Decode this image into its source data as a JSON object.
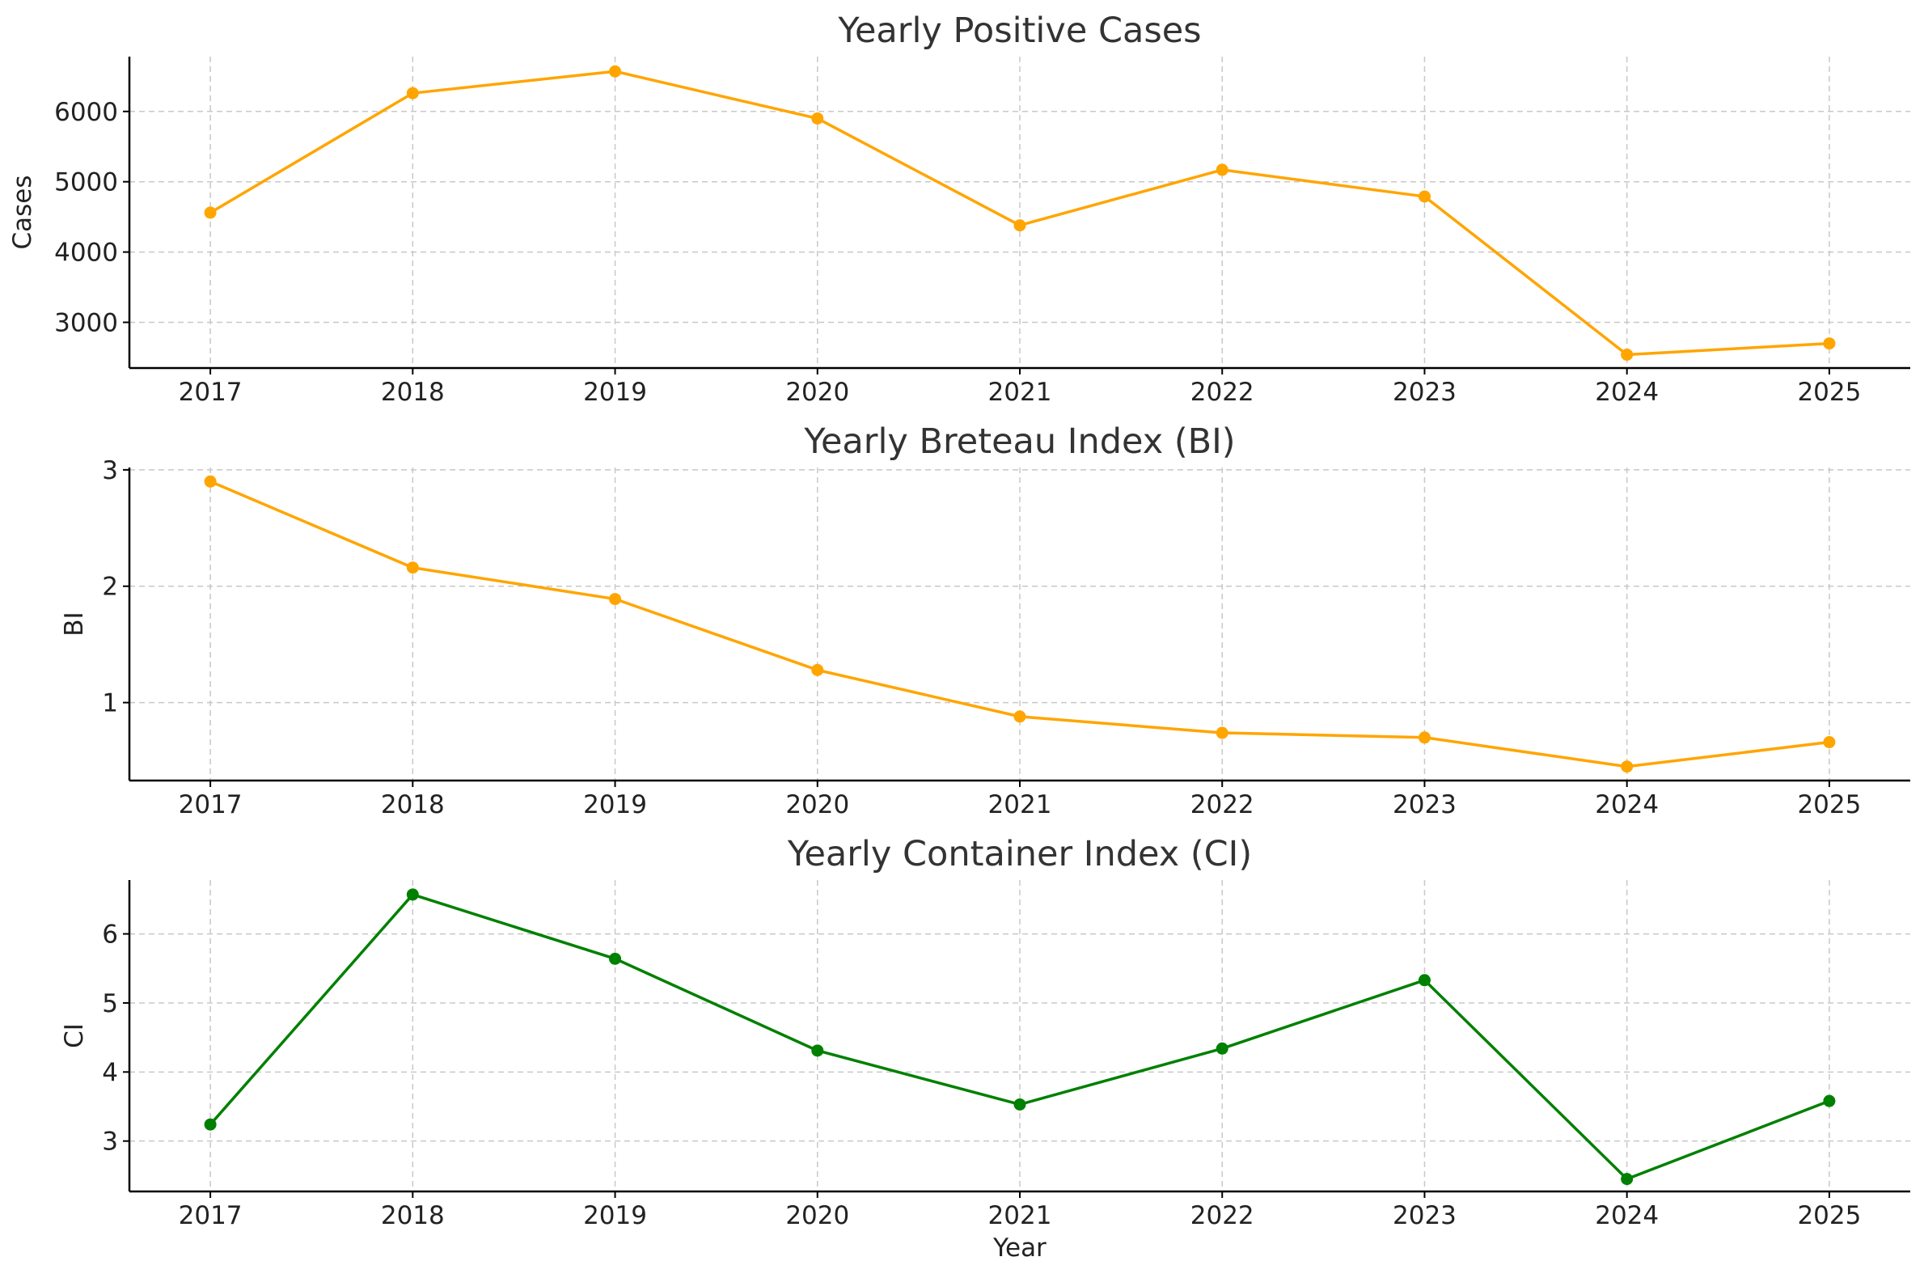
{
  "chart_data": [
    {
      "type": "line",
      "title": "Yearly Positive Cases",
      "xlabel": "",
      "ylabel": "Cases",
      "x": [
        2017,
        2018,
        2019,
        2020,
        2021,
        2022,
        2023,
        2024,
        2025
      ],
      "x_tick_labels": [
        "2017",
        "2018",
        "2019",
        "2020",
        "2021",
        "2022",
        "2023",
        "2024",
        "2025"
      ],
      "series": [
        {
          "values": [
            4560,
            6260,
            6570,
            5900,
            4380,
            5170,
            4790,
            2540,
            2700
          ],
          "color": "#FFA500"
        }
      ],
      "yticks": [
        3000,
        4000,
        5000,
        6000
      ],
      "ytick_labels": [
        "3000",
        "4000",
        "5000",
        "6000"
      ],
      "ylim": [
        2350,
        6780
      ],
      "xlim": [
        2016.6,
        2025.4
      ],
      "grid": true
    },
    {
      "type": "line",
      "title": "Yearly Breteau Index (BI)",
      "xlabel": "",
      "ylabel": "BI",
      "x": [
        2017,
        2018,
        2019,
        2020,
        2021,
        2022,
        2023,
        2024,
        2025
      ],
      "x_tick_labels": [
        "2017",
        "2018",
        "2019",
        "2020",
        "2021",
        "2022",
        "2023",
        "2024",
        "2025"
      ],
      "series": [
        {
          "values": [
            2.9,
            2.16,
            1.89,
            1.28,
            0.88,
            0.74,
            0.7,
            0.45,
            0.66
          ],
          "color": "#FFA500"
        }
      ],
      "yticks": [
        1,
        2,
        3
      ],
      "ytick_labels": [
        "1",
        "2",
        "3"
      ],
      "ylim": [
        0.33,
        3.02
      ],
      "xlim": [
        2016.6,
        2025.4
      ],
      "grid": true
    },
    {
      "type": "line",
      "title": "Yearly Container Index (CI)",
      "xlabel": "Year",
      "ylabel": "CI",
      "x": [
        2017,
        2018,
        2019,
        2020,
        2021,
        2022,
        2023,
        2024,
        2025
      ],
      "x_tick_labels": [
        "2017",
        "2018",
        "2019",
        "2020",
        "2021",
        "2022",
        "2023",
        "2024",
        "2025"
      ],
      "series": [
        {
          "values": [
            3.24,
            6.57,
            5.64,
            4.31,
            3.53,
            4.34,
            5.33,
            2.45,
            3.58
          ],
          "color": "#008000"
        }
      ],
      "yticks": [
        3,
        4,
        5,
        6
      ],
      "ytick_labels": [
        "3",
        "4",
        "5",
        "6"
      ],
      "ylim": [
        2.27,
        6.78
      ],
      "xlim": [
        2016.6,
        2025.4
      ],
      "grid": true
    }
  ]
}
